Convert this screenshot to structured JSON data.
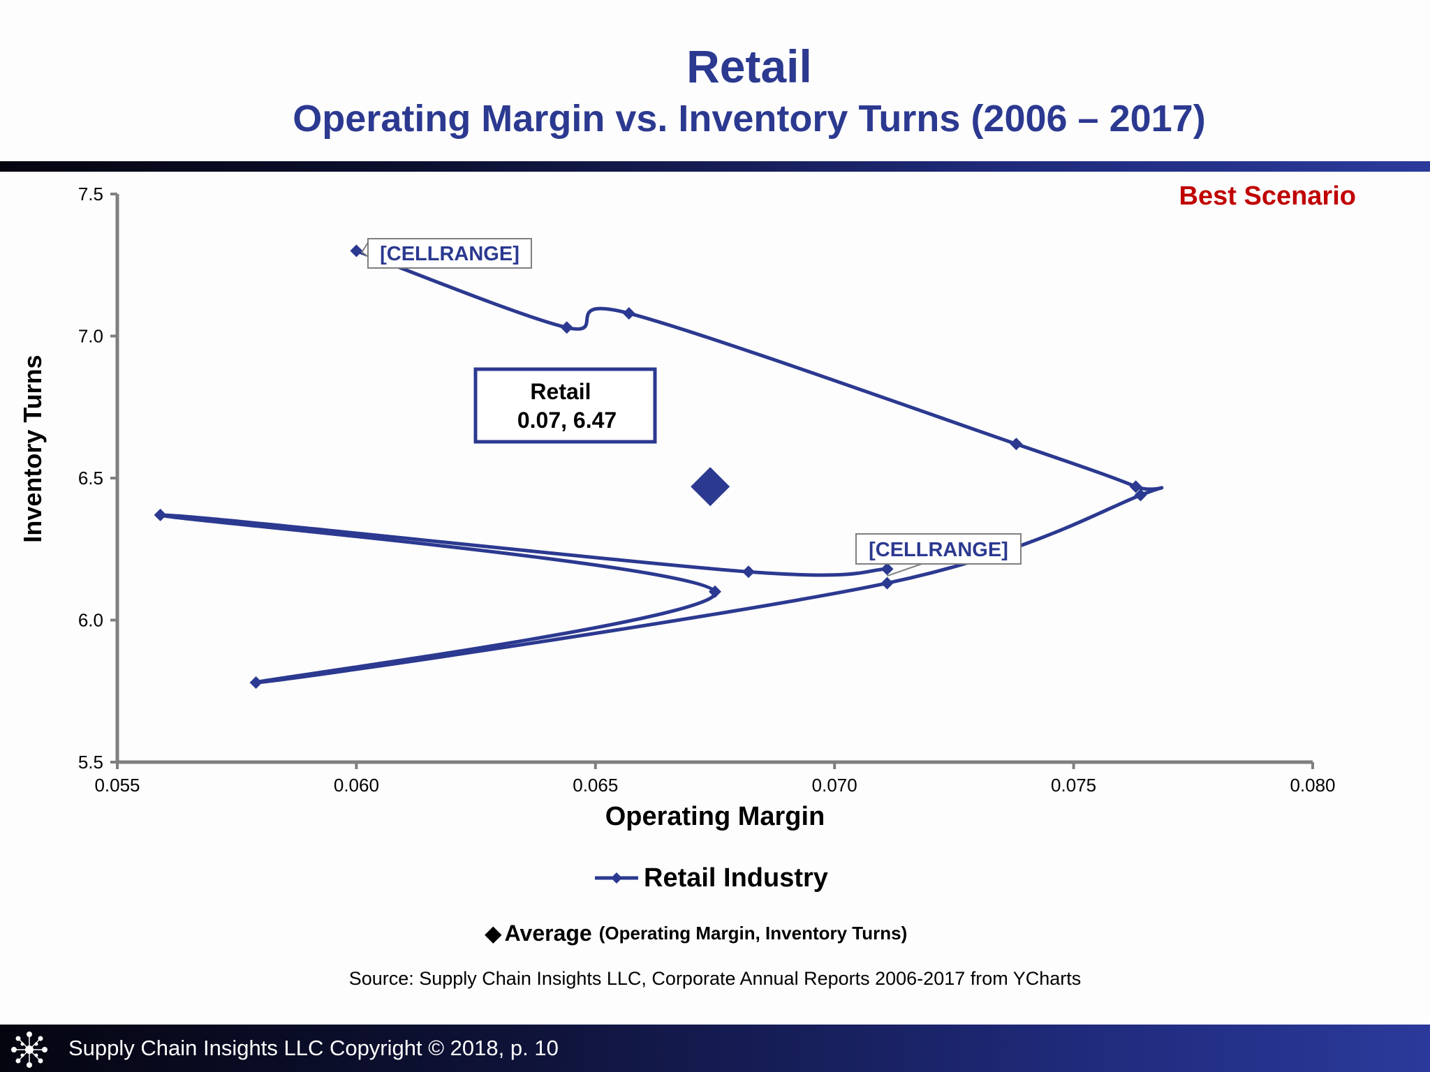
{
  "header": {
    "title": "Retail",
    "subtitle": "Operating Margin vs. Inventory Turns (2006 – 2017)"
  },
  "scenario_label": "Best Scenario",
  "legend": {
    "series_label": "Retail Industry",
    "average_label": "Average",
    "average_sublabel": "(Operating Margin, Inventory Turns)",
    "average_marker": "◆"
  },
  "source": "Source:  Supply Chain Insights LLC, Corporate Annual Reports 2006-2017 from YCharts",
  "footer": {
    "text": "Supply Chain Insights LLC Copyright © 2018, p. 10",
    "logo_icon": "network-logo-icon"
  },
  "colors": {
    "series": "#2b3990",
    "scenario": "#c00000",
    "axis": "#7f7f7f"
  },
  "chart_data": {
    "type": "scatter",
    "title": "",
    "xlabel": "Operating Margin",
    "ylabel": "Inventory Turns",
    "xlim": [
      0.055,
      0.08
    ],
    "ylim": [
      5.5,
      7.5
    ],
    "xticks": [
      "0.055",
      "0.060",
      "0.065",
      "0.070",
      "0.075",
      "0.080"
    ],
    "yticks": [
      "5.5",
      "6.0",
      "6.5",
      "7.0",
      "7.5"
    ],
    "grid": false,
    "series": [
      {
        "name": "Retail Industry",
        "points": [
          {
            "x": 0.06,
            "y": 7.3
          },
          {
            "x": 0.0644,
            "y": 7.03
          },
          {
            "x": 0.0657,
            "y": 7.08
          },
          {
            "x": 0.0738,
            "y": 6.62
          },
          {
            "x": 0.0763,
            "y": 6.47
          },
          {
            "x": 0.0764,
            "y": 6.44
          },
          {
            "x": 0.0711,
            "y": 6.13
          },
          {
            "x": 0.0579,
            "y": 5.78
          },
          {
            "x": 0.0675,
            "y": 6.1
          },
          {
            "x": 0.0559,
            "y": 6.37
          },
          {
            "x": 0.0682,
            "y": 6.17
          },
          {
            "x": 0.0711,
            "y": 6.18
          }
        ]
      }
    ],
    "average": {
      "name": "Average",
      "x": 0.0674,
      "y": 6.47
    },
    "annotations": [
      {
        "text": "[CELLRANGE]",
        "x": 0.06,
        "y": 7.3
      },
      {
        "text": "[CELLRANGE]",
        "x": 0.0711,
        "y": 6.18
      },
      {
        "line1": "Retail",
        "line2": "0.07, 6.47"
      }
    ]
  }
}
